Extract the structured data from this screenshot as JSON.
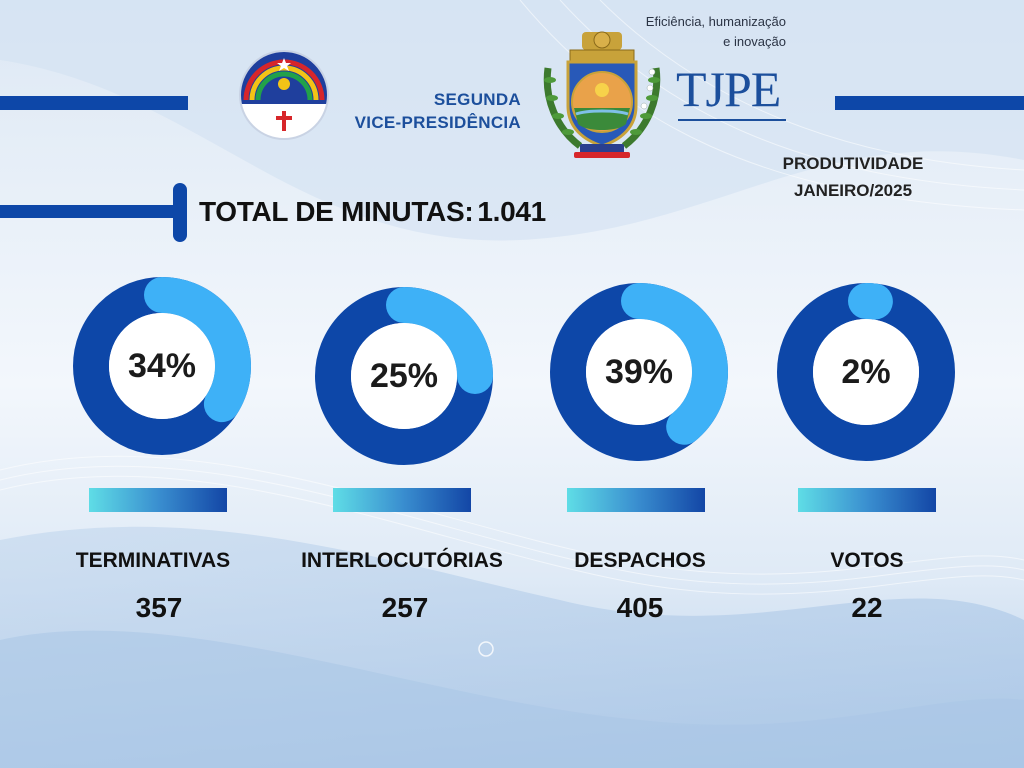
{
  "header": {
    "department_line1": "SEGUNDA",
    "department_line2": "VICE-PRESIDÊNCIA",
    "tagline_line1": "Eficiência, humanização",
    "tagline_line2": "e inovação",
    "logo_text": "TJPE",
    "period_line1": "PRODUTIVIDADE",
    "period_line2": "JANEIRO/2025"
  },
  "total": {
    "label": "TOTAL DE MINUTAS:",
    "value": "1.041"
  },
  "colors": {
    "primary_blue": "#0d47a8",
    "ring_light_blue": "#3eb1f7",
    "text_dark": "#111111"
  },
  "chart_data": {
    "type": "pie",
    "style": "donut",
    "categories": [
      "TERMINATIVAS",
      "INTERLOCUTÓRIAS",
      "DESPACHOS",
      "VOTOS"
    ],
    "values": [
      357,
      257,
      405,
      22
    ],
    "percent_labels": [
      "34%",
      "25%",
      "39%",
      "2%"
    ],
    "value_labels": [
      "357",
      "257",
      "405",
      "22"
    ],
    "percents": [
      34,
      25,
      39,
      2
    ]
  }
}
